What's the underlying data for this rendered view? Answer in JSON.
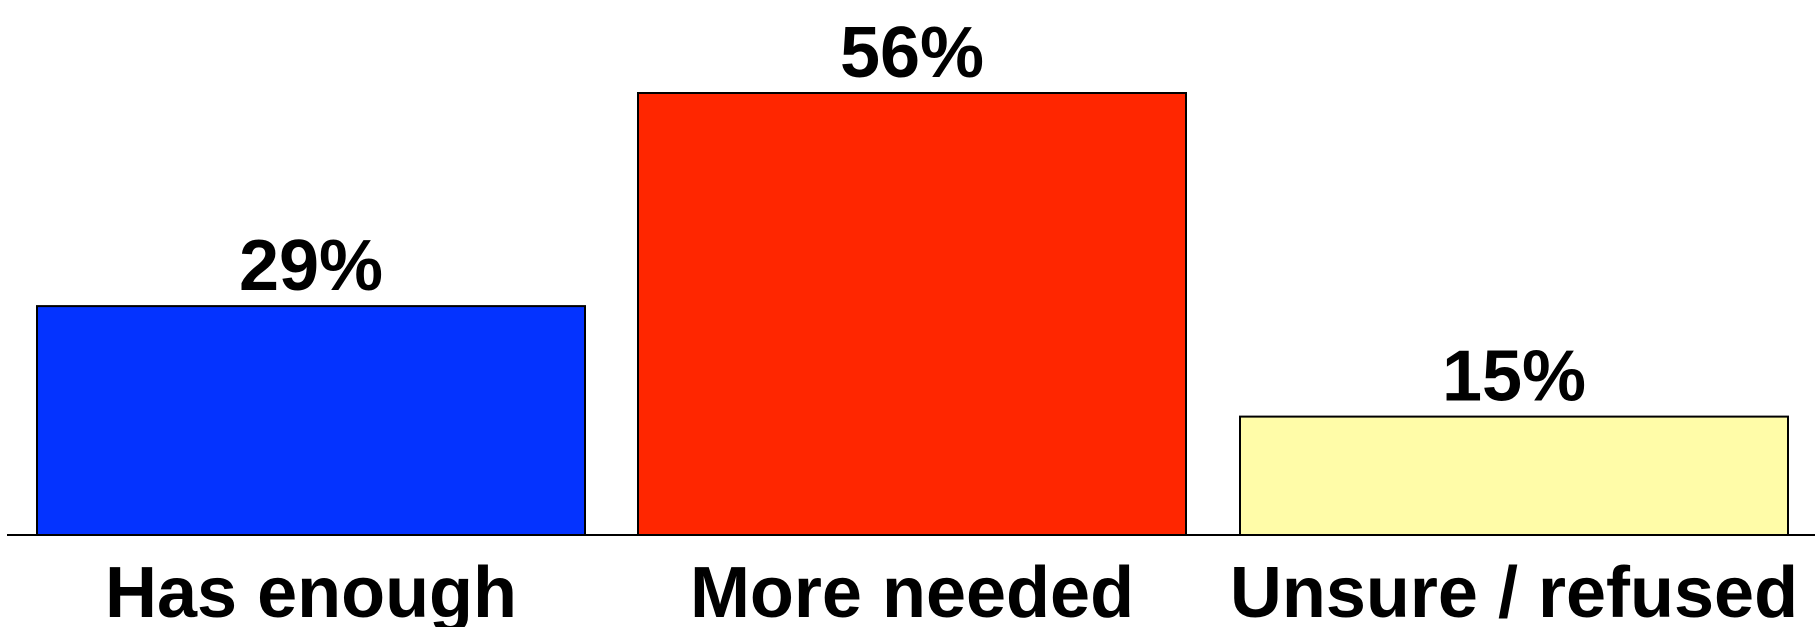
{
  "chart_data": {
    "type": "bar",
    "categories": [
      "Has enough",
      "More needed",
      "Unsure / refused"
    ],
    "values": [
      29,
      56,
      15
    ],
    "value_labels": [
      "29%",
      "56%",
      "15%"
    ],
    "colors": [
      "#0433FF",
      "#FF2600",
      "#FFFCA8"
    ],
    "ylim": [
      0,
      56
    ],
    "grid": false,
    "legend": "none"
  }
}
